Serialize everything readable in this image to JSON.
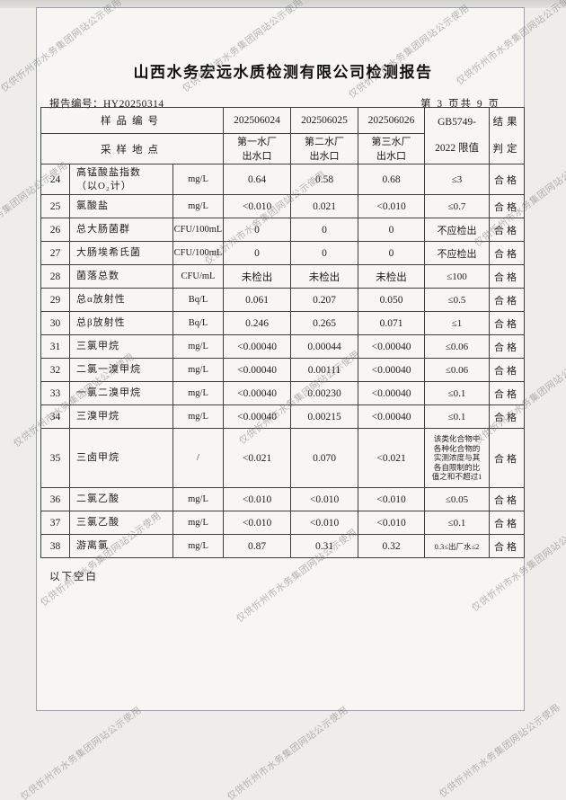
{
  "watermark": {
    "text": "仅供忻州市水务集团网站公示使用"
  },
  "header": {
    "title": "山西水务宏远水质检测有限公司检测报告",
    "report_no_label": "报告编号：",
    "report_no": "HY20250314",
    "page_info": "第 3 页共 9 页"
  },
  "table": {
    "head": {
      "sample_no_label": "样品编号",
      "location_label": "采样地点",
      "sample_ids": [
        "202506024",
        "202506025",
        "202506026"
      ],
      "locations": [
        "第一水厂\n出水口",
        "第二水厂\n出水口",
        "第三水厂\n出水口"
      ],
      "standard_limit": "GB5749-\n2022 限值",
      "result_label": "结果\n判定"
    },
    "rows": [
      {
        "no": "24",
        "name": "高锰酸盐指数\n（以O₂计）",
        "unit": "mg/L",
        "v1": "0.64",
        "v2": "0.58",
        "v3": "0.68",
        "limit": "≤3",
        "result": "合格"
      },
      {
        "no": "25",
        "name": "氯酸盐",
        "unit": "mg/L",
        "v1": "<0.010",
        "v2": "0.021",
        "v3": "<0.010",
        "limit": "≤0.7",
        "result": "合格"
      },
      {
        "no": "26",
        "name": "总大肠菌群",
        "unit": "CFU/100mL",
        "v1": "0",
        "v2": "0",
        "v3": "0",
        "limit": "不应检出",
        "result": "合格"
      },
      {
        "no": "27",
        "name": "大肠埃希氏菌",
        "unit": "CFU/100mL",
        "v1": "0",
        "v2": "0",
        "v3": "0",
        "limit": "不应检出",
        "result": "合格"
      },
      {
        "no": "28",
        "name": "菌落总数",
        "unit": "CFU/mL",
        "v1": "未检出",
        "v2": "未检出",
        "v3": "未检出",
        "limit": "≤100",
        "result": "合格"
      },
      {
        "no": "29",
        "name": "总α放射性",
        "unit": "Bq/L",
        "v1": "0.061",
        "v2": "0.207",
        "v3": "0.050",
        "limit": "≤0.5",
        "result": "合格"
      },
      {
        "no": "30",
        "name": "总β放射性",
        "unit": "Bq/L",
        "v1": "0.246",
        "v2": "0.265",
        "v3": "0.071",
        "limit": "≤1",
        "result": "合格"
      },
      {
        "no": "31",
        "name": "三氯甲烷",
        "unit": "mg/L",
        "v1": "<0.00040",
        "v2": "0.00044",
        "v3": "<0.00040",
        "limit": "≤0.06",
        "result": "合格"
      },
      {
        "no": "32",
        "name": "二氯一溴甲烷",
        "unit": "mg/L",
        "v1": "<0.00040",
        "v2": "0.00111",
        "v3": "<0.00040",
        "limit": "≤0.06",
        "result": "合格"
      },
      {
        "no": "33",
        "name": "一氯二溴甲烷",
        "unit": "mg/L",
        "v1": "<0.00040",
        "v2": "0.00230",
        "v3": "<0.00040",
        "limit": "≤0.1",
        "result": "合格"
      },
      {
        "no": "34",
        "name": "三溴甲烷",
        "unit": "mg/L",
        "v1": "<0.00040",
        "v2": "0.00215",
        "v3": "<0.00040",
        "limit": "≤0.1",
        "result": "合格"
      },
      {
        "no": "35",
        "name": "三卤甲烷",
        "unit": "/",
        "v1": "<0.021",
        "v2": "0.070",
        "v3": "<0.021",
        "limit": "该类化合物中\n各种化合物的\n实测浓度与其\n各自限制的比\n值之和不超过1",
        "result": "合格"
      },
      {
        "no": "36",
        "name": "二氯乙酸",
        "unit": "mg/L",
        "v1": "<0.010",
        "v2": "<0.010",
        "v3": "<0.010",
        "limit": "≤0.05",
        "result": "合格"
      },
      {
        "no": "37",
        "name": "三氯乙酸",
        "unit": "mg/L",
        "v1": "<0.010",
        "v2": "<0.010",
        "v3": "<0.010",
        "limit": "≤0.1",
        "result": "合格"
      },
      {
        "no": "38",
        "name": "游离氯",
        "unit": "mg/L",
        "v1": "0.87",
        "v2": "0.31",
        "v3": "0.32",
        "limit": "0.3≤出厂水≤2",
        "result": "合格"
      }
    ]
  },
  "footer": {
    "blank_note": "以下空白"
  }
}
